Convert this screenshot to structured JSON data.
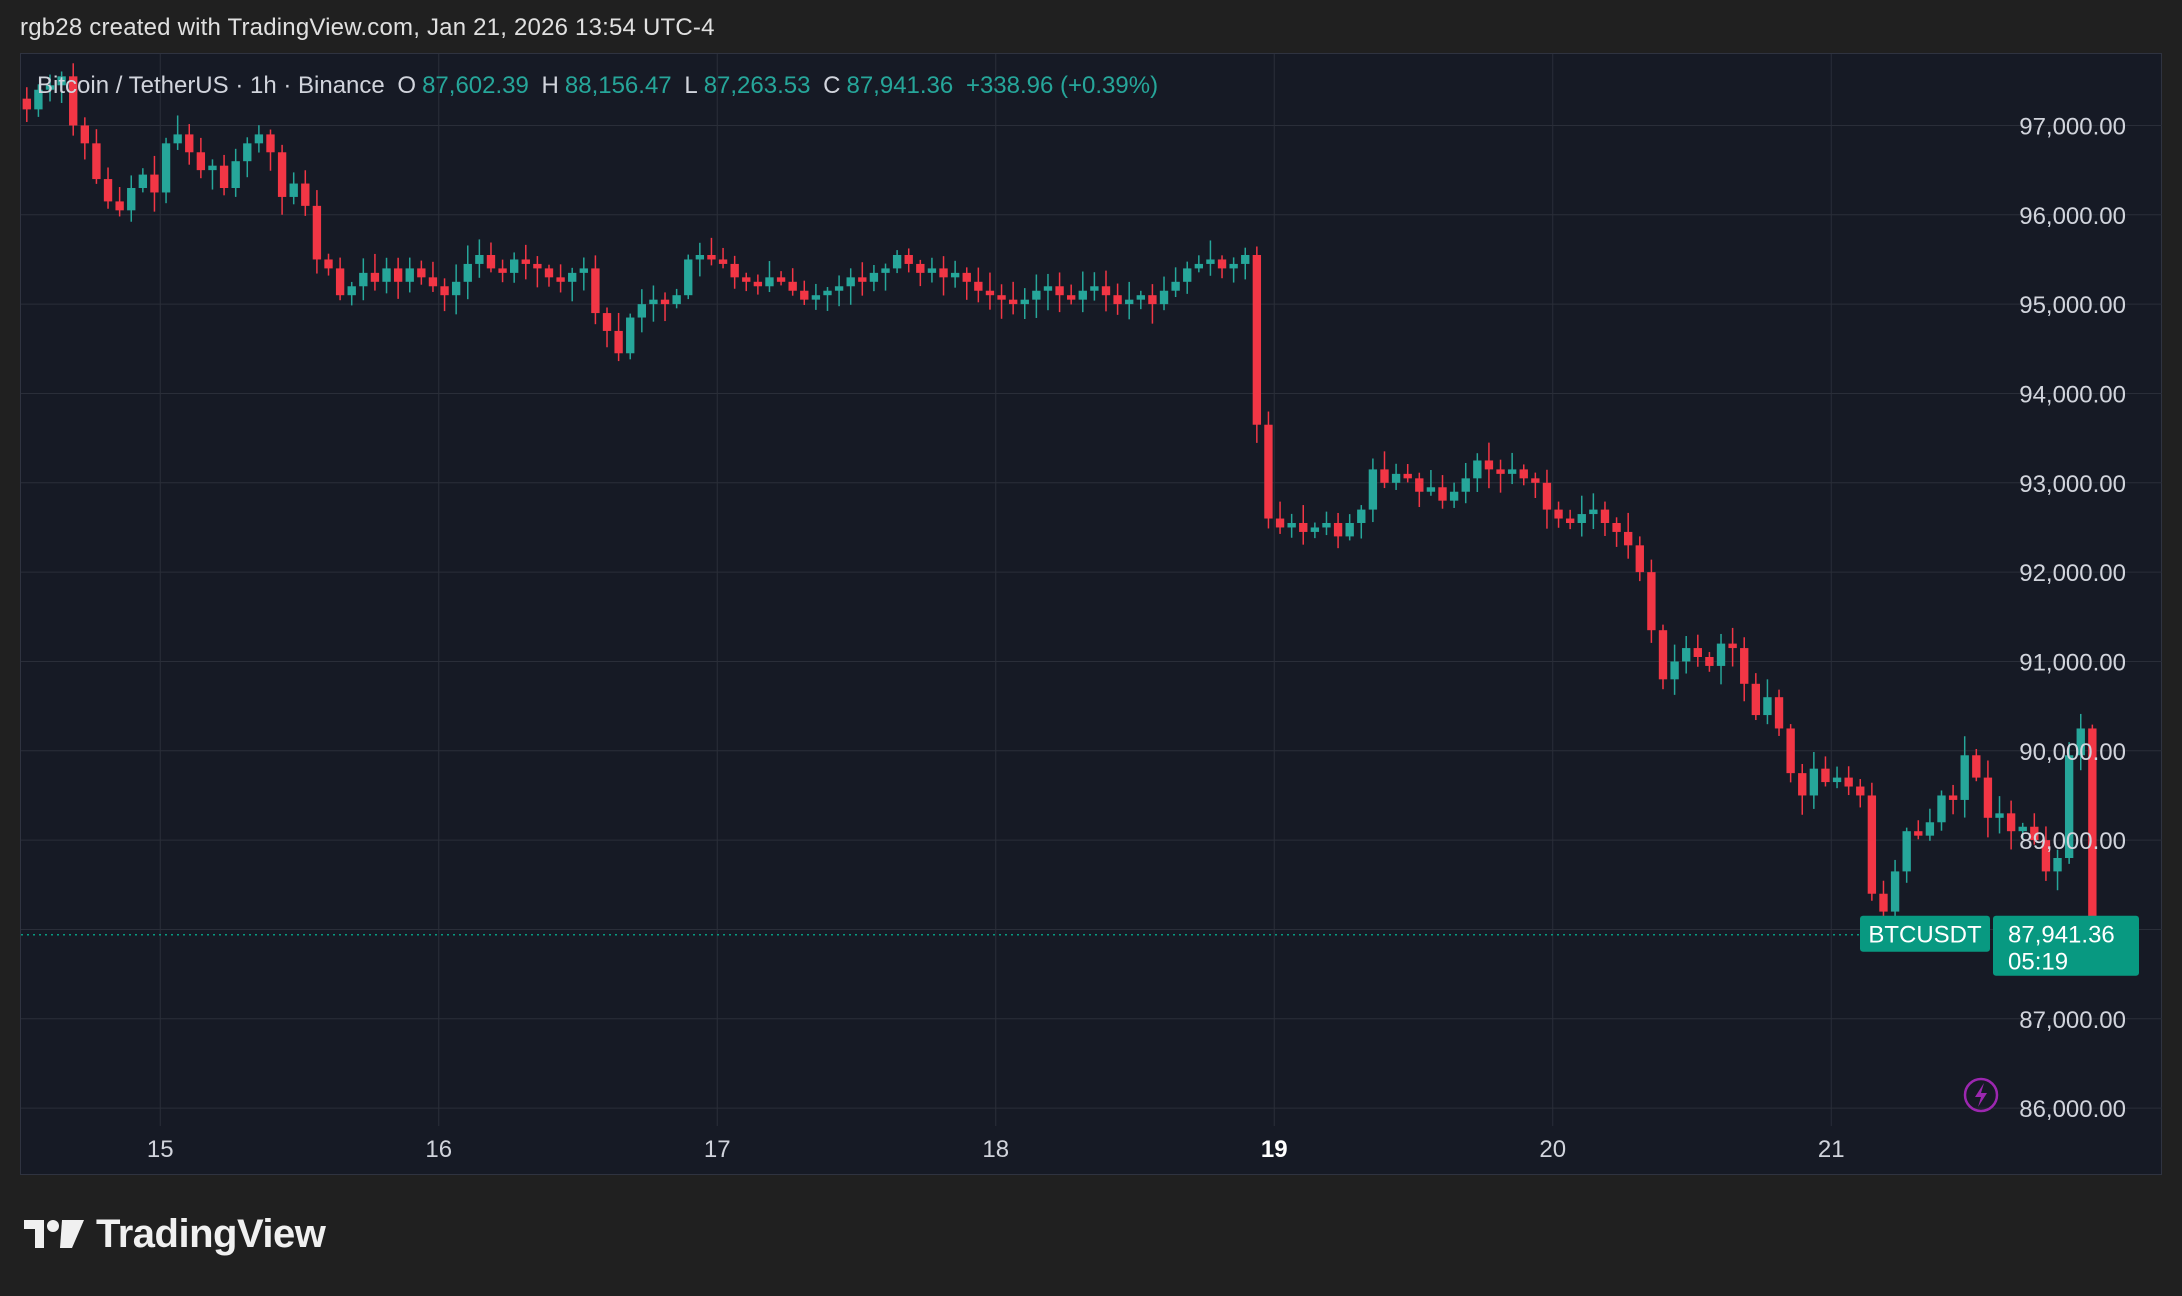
{
  "attribution": "rgb28 created with TradingView.com, Jan 21, 2026 13:54 UTC-4",
  "legend": {
    "symbol": "Bitcoin / TetherUS · 1h · Binance",
    "open_key": "O",
    "open": "87,602.39",
    "high_key": "H",
    "high": "88,156.47",
    "low_key": "L",
    "low": "87,263.53",
    "close_key": "C",
    "close": "87,941.36",
    "change": "+338.96 (+0.39%)"
  },
  "price_tag": {
    "ticker": "BTCUSDT",
    "price": "87,941.36",
    "countdown": "05:19"
  },
  "brand": "TradingView",
  "colors": {
    "up": "#26a69a",
    "down": "#f23645",
    "background": "#161a25",
    "grid": "#2a2e39",
    "text": "#d1d4dc",
    "tag": "#089981"
  },
  "icons": {
    "lightning": "lightning-bolt-icon",
    "logo": "tradingview-logo-icon"
  },
  "chart_data": {
    "type": "candlestick",
    "title": "Bitcoin / TetherUS · 1h · Binance",
    "xlabel": "",
    "ylabel": "",
    "x_ticks": [
      "15",
      "16",
      "17",
      "18",
      "19",
      "20",
      "21"
    ],
    "x_ticks_bold": [
      "19"
    ],
    "y_ticks": [
      "97,000.00",
      "96,000.00",
      "95,000.00",
      "94,000.00",
      "93,000.00",
      "92,000.00",
      "91,000.00",
      "90,000.00",
      "89,000.00",
      "88,000.00",
      "87,000.00",
      "86,000.00"
    ],
    "y_tick_values": [
      97000,
      96000,
      95000,
      94000,
      93000,
      92000,
      91000,
      90000,
      89000,
      88000,
      87000,
      86000
    ],
    "ylim": [
      85800,
      97800
    ],
    "x_range_days": [
      14.5,
      21.57
    ],
    "grid": true,
    "last_price": 87941.36,
    "interval": "1h",
    "exchange": "Binance",
    "note": "hourly close path read from chart (Jan 14 12:00 to Jan 21 13:00)",
    "closes": [
      97180,
      97400,
      97450,
      97550,
      97000,
      96800,
      96400,
      96150,
      96050,
      96300,
      96450,
      96250,
      96800,
      96900,
      96700,
      96500,
      96550,
      96300,
      96600,
      96800,
      96900,
      96700,
      96200,
      96350,
      96100,
      95500,
      95400,
      95100,
      95200,
      95350,
      95250,
      95400,
      95250,
      95400,
      95300,
      95200,
      95100,
      95250,
      95450,
      95550,
      95400,
      95350,
      95500,
      95450,
      95400,
      95300,
      95250,
      95350,
      95400,
      94900,
      94700,
      94450,
      94850,
      95000,
      95050,
      95000,
      95100,
      95500,
      95550,
      95500,
      95450,
      95300,
      95250,
      95200,
      95300,
      95250,
      95150,
      95050,
      95100,
      95150,
      95200,
      95300,
      95250,
      95350,
      95400,
      95550,
      95450,
      95350,
      95400,
      95300,
      95350,
      95250,
      95150,
      95100,
      95050,
      95000,
      95050,
      95150,
      95200,
      95100,
      95050,
      95150,
      95200,
      95100,
      95000,
      95050,
      95100,
      95000,
      95150,
      95250,
      95400,
      95450,
      95500,
      95400,
      95450,
      95550,
      93650,
      92600,
      92500,
      92550,
      92450,
      92500,
      92550,
      92400,
      92550,
      92700,
      93150,
      93000,
      93100,
      93050,
      92900,
      92950,
      92800,
      92900,
      93050,
      93250,
      93150,
      93100,
      93150,
      93050,
      93000,
      92700,
      92600,
      92550,
      92650,
      92700,
      92550,
      92450,
      92300,
      92000,
      91350,
      90800,
      91000,
      91150,
      91050,
      90950,
      91200,
      91150,
      90750,
      90400,
      90600,
      90250,
      89750,
      89500,
      89800,
      89650,
      89700,
      89600,
      89500,
      88400,
      88200,
      88650,
      89100,
      89050,
      89200,
      89500,
      89450,
      89950,
      89700,
      89250,
      89300,
      89100,
      89150,
      89000,
      88650,
      88800,
      89950,
      90250,
      87800,
      87941.36
    ]
  }
}
